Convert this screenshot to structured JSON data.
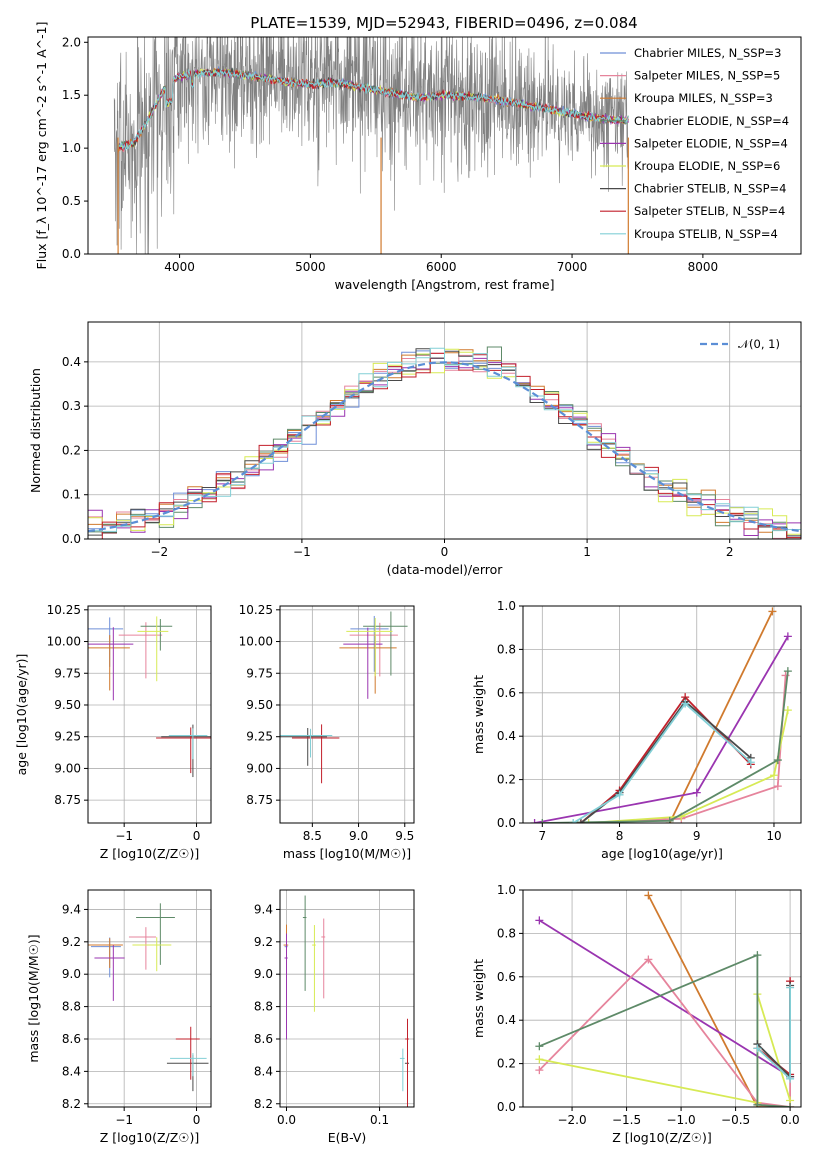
{
  "figure": {
    "title": "PLATE=1539, MJD=52943, FIBERID=0496, z=0.084",
    "colors": {
      "Chabrier MILES": "#6f8fd8",
      "Salpeter MILES": "#e6849c",
      "Kroupa MILES": "#d07a2e",
      "Chabrier ELODIE": "#5e8a68",
      "Salpeter ELODIE": "#9a35b0",
      "Kroupa ELODIE": "#d7ea55",
      "Chabrier STELIB": "#4a4a4a",
      "Salpeter STELIB": "#c21f2a",
      "Kroupa STELIB": "#82cfd6",
      "data": "#808080",
      "normal": "#5b8ed6"
    }
  },
  "chart_data": [
    {
      "id": "spectrum",
      "type": "line",
      "xlabel": "wavelength [Angstrom, rest frame]",
      "ylabel": "Flux [f_λ 10^-17 erg cm^-2 s^-1 A^-1]",
      "xlim": [
        3300,
        8750
      ],
      "ylim": [
        0,
        2.05
      ],
      "xticks": [
        4000,
        5000,
        6000,
        7000,
        8000
      ],
      "yticks": [
        0.0,
        0.5,
        1.0,
        1.5,
        2.0
      ],
      "legend_position": "right",
      "legend": [
        "Chabrier MILES, N_SSP=3",
        "Salpeter MILES, N_SSP=5",
        "Kroupa MILES, N_SSP=3",
        "Chabrier ELODIE, N_SSP=4",
        "Salpeter ELODIE, N_SSP=4",
        "Kroupa ELODIE, N_SSP=6",
        "Chabrier STELIB, N_SSP=4",
        "Salpeter STELIB, N_SSP=4",
        "Kroupa STELIB, N_SSP=4"
      ],
      "model_continuum": {
        "x": [
          3530,
          3650,
          3750,
          3900,
          4000,
          4100,
          4300,
          4500,
          4800,
          5000,
          5200,
          5500,
          5800,
          6000,
          6300,
          6600,
          6900,
          7100,
          7300,
          7430
        ],
        "y": [
          1.0,
          1.05,
          1.25,
          1.6,
          1.68,
          1.7,
          1.72,
          1.69,
          1.63,
          1.6,
          1.62,
          1.55,
          1.48,
          1.5,
          1.48,
          1.42,
          1.35,
          1.3,
          1.27,
          1.26
        ]
      },
      "grid": false
    },
    {
      "id": "residual_hist",
      "type": "histogram",
      "xlabel": "(data-model)/error",
      "ylabel": "Normed distribution",
      "xlim": [
        -2.5,
        2.5
      ],
      "ylim": [
        0,
        0.49
      ],
      "xticks": [
        -2,
        -1,
        0,
        1,
        2
      ],
      "yticks": [
        0.0,
        0.1,
        0.2,
        0.3,
        0.4
      ],
      "legend": [
        "𝒩(0, 1)"
      ],
      "legend_position": "top-right",
      "bin_width": 0.1,
      "grid": true
    },
    {
      "id": "age_vs_Z",
      "type": "scatter",
      "xlabel": "Z [log10(Z/Z☉)]",
      "ylabel": "age [log10(age/yr)]",
      "xlim": [
        -1.5,
        0.2
      ],
      "ylim": [
        8.57,
        10.28
      ],
      "xticks": [
        -1,
        0
      ],
      "yticks": [
        8.75,
        9.0,
        9.25,
        9.5,
        9.75,
        10.0,
        10.25
      ],
      "grid": true
    },
    {
      "id": "age_vs_mass",
      "type": "scatter",
      "xlabel": "mass [log10(M/M☉)]",
      "xlim": [
        8.15,
        9.6
      ],
      "ylim": [
        8.57,
        10.28
      ],
      "xticks": [
        8.5,
        9.0,
        9.5
      ],
      "yticks": [
        8.75,
        9.0,
        9.25,
        9.5,
        9.75,
        10.0,
        10.25
      ],
      "grid": true
    },
    {
      "id": "weight_vs_age",
      "type": "line",
      "xlabel": "age [log10(age/yr)]",
      "ylabel": "mass weight",
      "xlim": [
        6.75,
        10.35
      ],
      "ylim": [
        0,
        1.0
      ],
      "xticks": [
        7,
        8,
        9,
        10
      ],
      "yticks": [
        0.0,
        0.2,
        0.4,
        0.6,
        0.8,
        1.0
      ],
      "grid": true,
      "series": [
        {
          "model": "Kroupa MILES",
          "x": [
            8.65,
            9.98
          ],
          "y": [
            0.0,
            0.975
          ]
        },
        {
          "model": "Salpeter ELODIE",
          "x": [
            6.9,
            9.0,
            10.18
          ],
          "y": [
            0.0,
            0.14,
            0.86
          ]
        },
        {
          "model": "Salpeter MILES",
          "x": [
            7.5,
            8.8,
            10.05,
            10.15
          ],
          "y": [
            0.0,
            0.02,
            0.17,
            0.68
          ]
        },
        {
          "model": "Kroupa ELODIE",
          "x": [
            7.6,
            8.8,
            10.0,
            10.18
          ],
          "y": [
            0.0,
            0.03,
            0.22,
            0.52
          ]
        },
        {
          "model": "Chabrier ELODIE",
          "x": [
            7.0,
            8.65,
            10.05,
            10.18
          ],
          "y": [
            0.0,
            0.01,
            0.29,
            0.7
          ]
        },
        {
          "model": "Salpeter STELIB",
          "x": [
            7.5,
            8.0,
            8.85,
            9.7
          ],
          "y": [
            0.0,
            0.15,
            0.58,
            0.27
          ]
        },
        {
          "model": "Chabrier STELIB",
          "x": [
            7.5,
            8.0,
            8.85,
            9.7
          ],
          "y": [
            0.0,
            0.14,
            0.56,
            0.3
          ]
        },
        {
          "model": "Kroupa STELIB",
          "x": [
            7.4,
            8.0,
            8.85,
            9.7
          ],
          "y": [
            0.0,
            0.13,
            0.55,
            0.28
          ]
        }
      ]
    },
    {
      "id": "mass_vs_Z",
      "type": "scatter",
      "xlabel": "Z [log10(Z/Z☉)]",
      "ylabel": "mass [log10(M/M☉)]",
      "xlim": [
        -1.5,
        0.2
      ],
      "ylim": [
        8.18,
        9.52
      ],
      "xticks": [
        -1,
        0
      ],
      "yticks": [
        8.2,
        8.4,
        8.6,
        8.8,
        9.0,
        9.2,
        9.4
      ],
      "grid": true
    },
    {
      "id": "mass_vs_EBV",
      "type": "scatter",
      "xlabel": "E(B-V)",
      "xlim": [
        -0.007,
        0.137
      ],
      "ylim": [
        8.18,
        9.52
      ],
      "xticks": [
        0.0,
        0.1
      ],
      "yticks": [
        8.2,
        8.4,
        8.6,
        8.8,
        9.0,
        9.2,
        9.4
      ],
      "grid": true
    },
    {
      "id": "weight_vs_Z",
      "type": "line",
      "xlabel": "Z [log10(Z/Z☉)]",
      "ylabel": "mass weight",
      "xlim": [
        -2.45,
        0.1
      ],
      "ylim": [
        0,
        1.0
      ],
      "xticks": [
        -2.0,
        -1.5,
        -1.0,
        -0.5,
        0.0
      ],
      "yticks": [
        0.0,
        0.2,
        0.4,
        0.6,
        0.8,
        1.0
      ],
      "grid": true,
      "series": [
        {
          "model": "Kroupa MILES",
          "x": [
            -1.3,
            -0.3,
            0.0
          ],
          "y": [
            0.975,
            0.0,
            0.0
          ]
        },
        {
          "model": "Salpeter ELODIE",
          "x": [
            -2.3,
            0.0
          ],
          "y": [
            0.86,
            0.14
          ]
        },
        {
          "model": "Salpeter MILES",
          "x": [
            -2.3,
            -1.3,
            -0.3,
            0.0,
            0.0
          ],
          "y": [
            0.17,
            0.68,
            0.02,
            0.0,
            0.58
          ]
        },
        {
          "model": "Kroupa ELODIE",
          "x": [
            -2.3,
            -0.3,
            -0.3,
            0.0
          ],
          "y": [
            0.22,
            0.02,
            0.52,
            0.03
          ]
        },
        {
          "model": "Chabrier ELODIE",
          "x": [
            -2.3,
            -0.3,
            -0.3,
            0.0
          ],
          "y": [
            0.28,
            0.7,
            0.01,
            0.0
          ]
        },
        {
          "model": "Salpeter STELIB",
          "x": [
            -0.3,
            0.0,
            0.0
          ],
          "y": [
            0.27,
            0.15,
            0.58
          ]
        },
        {
          "model": "Chabrier STELIB",
          "x": [
            -0.3,
            0.0,
            0.0
          ],
          "y": [
            0.29,
            0.14,
            0.56
          ]
        },
        {
          "model": "Kroupa STELIB",
          "x": [
            -0.3,
            0.0,
            0.0
          ],
          "y": [
            0.27,
            0.13,
            0.55
          ]
        }
      ]
    }
  ]
}
